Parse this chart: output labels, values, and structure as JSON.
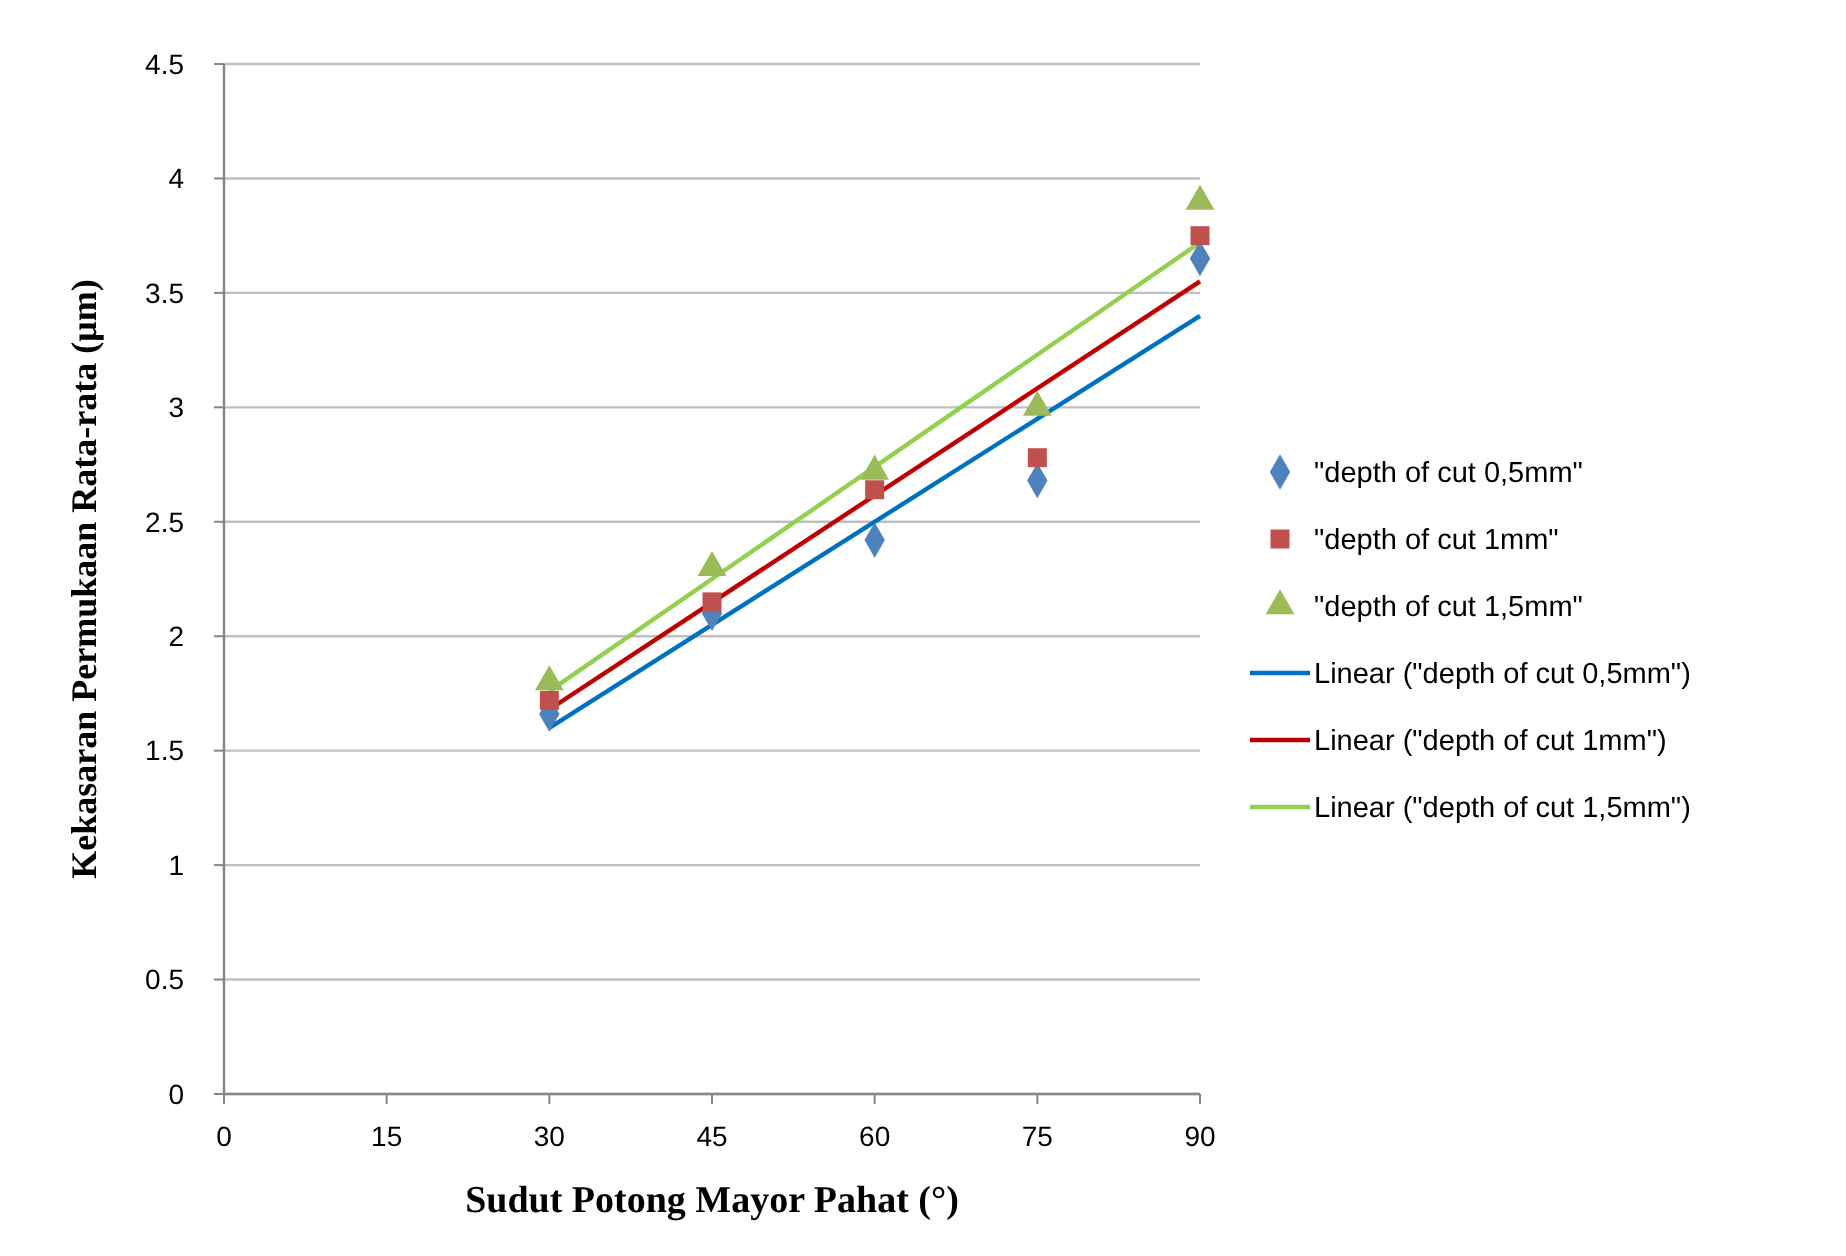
{
  "chart_data": {
    "type": "scatter",
    "xlabel": "Sudut Potong Mayor Pahat (°)",
    "ylabel": "Kekasaran Permukaan Rata-rata  (μm)",
    "xlim": [
      0,
      90
    ],
    "xticks": [
      0,
      15,
      30,
      45,
      60,
      75,
      90
    ],
    "ylim": [
      0,
      4.5
    ],
    "yticks": [
      0,
      0.5,
      1,
      1.5,
      2,
      2.5,
      3,
      3.5,
      4,
      4.5
    ],
    "grid": "y",
    "legend": "right",
    "series": [
      {
        "name": "\"depth of cut 0,5mm\"",
        "marker": "diamond",
        "color": "#4f81bd",
        "x": [
          30,
          45,
          60,
          75,
          90
        ],
        "values": [
          1.66,
          2.1,
          2.42,
          2.68,
          3.65
        ]
      },
      {
        "name": "\"depth of cut 1mm\"",
        "marker": "square",
        "color": "#c0504d",
        "x": [
          30,
          45,
          60,
          75,
          90
        ],
        "values": [
          1.72,
          2.15,
          2.64,
          2.78,
          3.75
        ]
      },
      {
        "name": "\"depth of cut 1,5mm\"",
        "marker": "triangle",
        "color": "#9bbb59",
        "x": [
          30,
          45,
          60,
          75,
          90
        ],
        "values": [
          1.8,
          2.3,
          2.72,
          3.0,
          3.9
        ]
      },
      {
        "name": "Linear (\"depth of cut 0,5mm\")",
        "type": "line",
        "color": "#0070c0",
        "x": [
          30,
          90
        ],
        "values": [
          1.6,
          3.4
        ]
      },
      {
        "name": "Linear (\"depth of cut 1mm\")",
        "type": "line",
        "color": "#c00000",
        "x": [
          30,
          90
        ],
        "values": [
          1.68,
          3.55
        ]
      },
      {
        "name": "Linear (\"depth of cut 1,5mm\")",
        "type": "line",
        "color": "#92d050",
        "x": [
          30,
          90
        ],
        "values": [
          1.76,
          3.72
        ]
      }
    ]
  }
}
